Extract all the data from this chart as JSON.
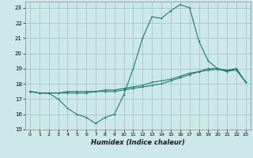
{
  "xlabel": "Humidex (Indice chaleur)",
  "xlim": [
    -0.5,
    23.5
  ],
  "ylim": [
    15,
    23.4
  ],
  "yticks": [
    15,
    16,
    17,
    18,
    19,
    20,
    21,
    22,
    23
  ],
  "xticks": [
    0,
    1,
    2,
    3,
    4,
    5,
    6,
    7,
    8,
    9,
    10,
    11,
    12,
    13,
    14,
    15,
    16,
    17,
    18,
    19,
    20,
    21,
    22,
    23
  ],
  "bg_color": "#cce8e8",
  "grid_color": "#9bbfbf",
  "line_color": "#1e7b70",
  "line1_y": [
    17.5,
    17.4,
    17.4,
    17.0,
    16.4,
    16.0,
    15.8,
    15.4,
    15.8,
    16.0,
    17.3,
    19.0,
    21.0,
    22.4,
    22.3,
    22.8,
    23.2,
    23.0,
    20.8,
    19.5,
    19.0,
    18.8,
    19.0,
    18.1
  ],
  "line2_y": [
    17.5,
    17.4,
    17.4,
    17.4,
    17.5,
    17.5,
    17.5,
    17.5,
    17.6,
    17.6,
    17.7,
    17.8,
    17.9,
    18.1,
    18.2,
    18.3,
    18.5,
    18.7,
    18.8,
    19.0,
    19.0,
    18.9,
    19.0,
    18.1
  ],
  "line3_y": [
    17.5,
    17.4,
    17.4,
    17.4,
    17.4,
    17.4,
    17.4,
    17.5,
    17.5,
    17.5,
    17.6,
    17.7,
    17.8,
    17.9,
    18.0,
    18.2,
    18.4,
    18.6,
    18.8,
    18.9,
    18.95,
    18.85,
    18.9,
    18.1
  ]
}
